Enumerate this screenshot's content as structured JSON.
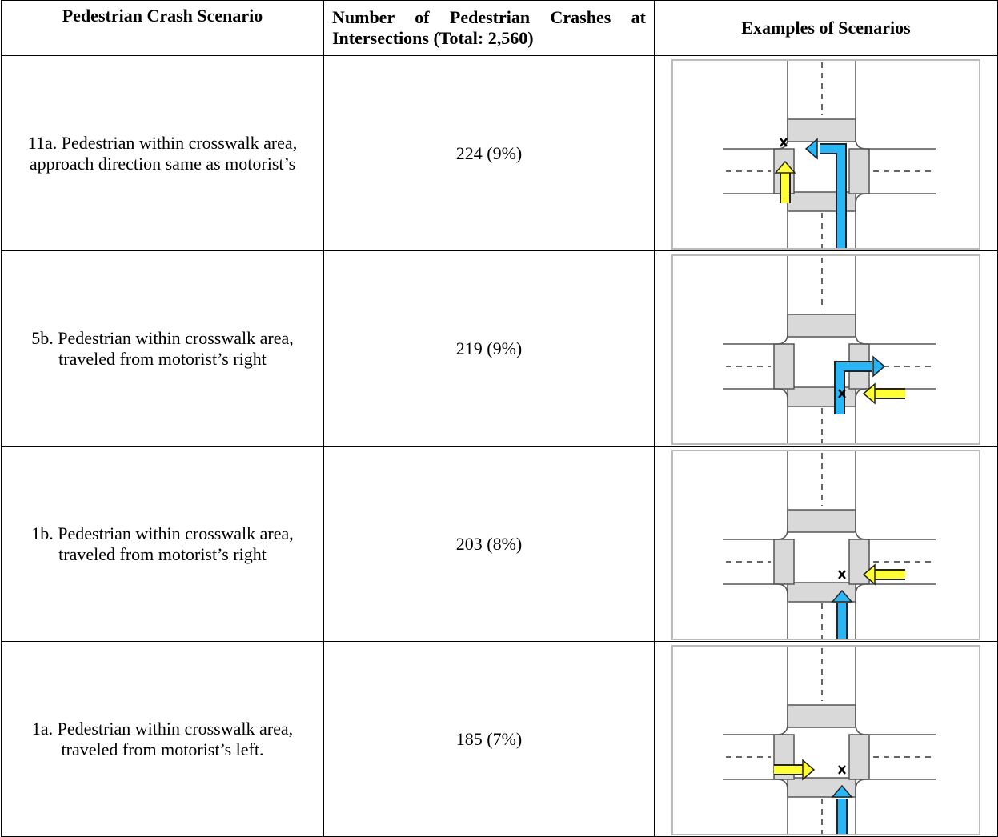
{
  "table": {
    "headers": [
      "Pedestrian Crash Scenario",
      "Number of Pedestrian Crashes at Intersections (Total: 2,560)",
      "Examples of Scenarios"
    ],
    "rows": [
      [
        "11a. Pedestrian within crosswalk area, approach direction same as motorist’s",
        "224 (9%)"
      ],
      [
        "5b. Pedestrian within crosswalk area, traveled from motorist’s right",
        "219 (9%)"
      ],
      [
        "1b. Pedestrian within crosswalk area, traveled from motorist’s right",
        "203 (8%)"
      ],
      [
        "1a. Pedestrian within crosswalk area, traveled from motorist’s left.",
        "185 (7%)"
      ]
    ]
  }
}
